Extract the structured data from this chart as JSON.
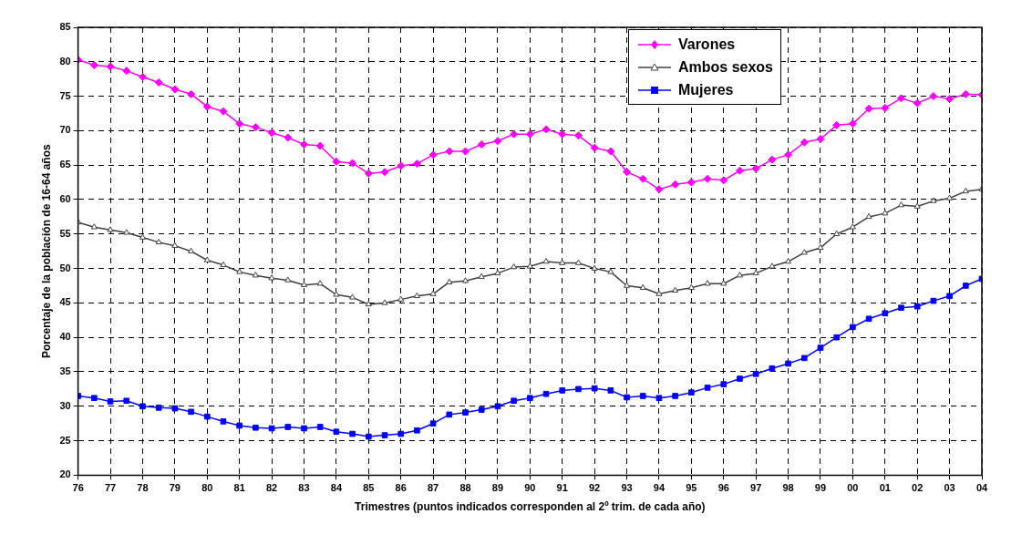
{
  "chart_data": {
    "type": "line",
    "xlabel": "Trimestres (puntos indicados corresponden al 2º trim. de cada año)",
    "ylabel": "Porcentaje de la población de 16-64 años",
    "x": [
      1976,
      1976.5,
      1977,
      1977.5,
      1978,
      1978.5,
      1979,
      1979.5,
      1980,
      1980.5,
      1981,
      1981.5,
      1982,
      1982.5,
      1983,
      1983.5,
      1984,
      1984.5,
      1985,
      1985.5,
      1986,
      1986.5,
      1987,
      1987.5,
      1988,
      1988.5,
      1989,
      1989.5,
      1990,
      1990.5,
      1991,
      1991.5,
      1992,
      1992.5,
      1993,
      1993.5,
      1994,
      1994.5,
      1995,
      1995.5,
      1996,
      1996.5,
      1997,
      1997.5,
      1998,
      1998.5,
      1999,
      1999.5,
      2000,
      2000.5,
      2001,
      2001.5,
      2002,
      2002.5,
      2003,
      2003.5,
      2004
    ],
    "series": [
      {
        "name": "Varones",
        "color": "#ff00ff",
        "marker": "diamond",
        "values": [
          80.3,
          79.5,
          79.3,
          78.7,
          77.8,
          77,
          76,
          75.3,
          73.5,
          72.8,
          71,
          70.5,
          69.7,
          69,
          68,
          67.8,
          65.5,
          65.3,
          63.8,
          64,
          64.9,
          65.2,
          66.5,
          67,
          67,
          68,
          68.5,
          69.5,
          69.5,
          70.2,
          69.5,
          69.3,
          67.5,
          67,
          64,
          63,
          61.5,
          62.2,
          62.5,
          63,
          62.8,
          64.2,
          64.5,
          65.8,
          66.5,
          68.3,
          68.8,
          70.8,
          71,
          73.2,
          73.3,
          74.7,
          74,
          75,
          74.6,
          75.3,
          75.2
        ]
      },
      {
        "name": "Ambos sexos",
        "color": "#404040",
        "marker": "triangle",
        "values": [
          56.7,
          56,
          55.6,
          55.2,
          54.5,
          53.8,
          53.3,
          52.5,
          51.2,
          50.5,
          49.5,
          49,
          48.6,
          48.3,
          47.6,
          47.8,
          46.2,
          45.8,
          44.8,
          45,
          45.5,
          46,
          46.3,
          48,
          48.2,
          48.8,
          49.3,
          50.2,
          50.3,
          51,
          50.8,
          50.8,
          50,
          49.5,
          47.5,
          47.2,
          46.3,
          46.8,
          47.2,
          47.8,
          47.8,
          49,
          49.3,
          50.3,
          51,
          52.3,
          53,
          55,
          56,
          57.5,
          58,
          59.2,
          59,
          59.8,
          60.2,
          61.2,
          61.5
        ]
      },
      {
        "name": "Mujeres",
        "color": "#0000ff",
        "marker": "square",
        "values": [
          31.5,
          31.2,
          30.7,
          30.8,
          30,
          29.8,
          29.7,
          29.2,
          28.5,
          27.8,
          27.2,
          26.9,
          26.8,
          27,
          26.8,
          27,
          26.3,
          26,
          25.6,
          25.8,
          26,
          26.5,
          27.5,
          28.8,
          29.1,
          29.5,
          30,
          30.8,
          31.2,
          31.8,
          32.3,
          32.5,
          32.6,
          32.3,
          31.3,
          31.5,
          31.2,
          31.5,
          32,
          32.7,
          33.2,
          34,
          34.7,
          35.5,
          36.2,
          37,
          38.5,
          40,
          41.5,
          42.7,
          43.5,
          44.3,
          44.5,
          45.3,
          46,
          47.5,
          48.5
        ]
      }
    ],
    "xlim": [
      1976,
      2004
    ],
    "xticks": [
      {
        "value": 1976,
        "label": "76"
      },
      {
        "value": 1977,
        "label": "77"
      },
      {
        "value": 1978,
        "label": "78"
      },
      {
        "value": 1979,
        "label": "79"
      },
      {
        "value": 1980,
        "label": "80"
      },
      {
        "value": 1981,
        "label": "81"
      },
      {
        "value": 1982,
        "label": "82"
      },
      {
        "value": 1983,
        "label": "83"
      },
      {
        "value": 1984,
        "label": "84"
      },
      {
        "value": 1985,
        "label": "85"
      },
      {
        "value": 1986,
        "label": "86"
      },
      {
        "value": 1987,
        "label": "87"
      },
      {
        "value": 1988,
        "label": "88"
      },
      {
        "value": 1989,
        "label": "89"
      },
      {
        "value": 1990,
        "label": "90"
      },
      {
        "value": 1991,
        "label": "91"
      },
      {
        "value": 1992,
        "label": "92"
      },
      {
        "value": 1993,
        "label": "93"
      },
      {
        "value": 1994,
        "label": "94"
      },
      {
        "value": 1995,
        "label": "95"
      },
      {
        "value": 1996,
        "label": "96"
      },
      {
        "value": 1997,
        "label": "97"
      },
      {
        "value": 1998,
        "label": "98"
      },
      {
        "value": 1999,
        "label": "99"
      },
      {
        "value": 2000,
        "label": "00"
      },
      {
        "value": 2001,
        "label": "01"
      },
      {
        "value": 2002,
        "label": "02"
      },
      {
        "value": 2003,
        "label": "03"
      },
      {
        "value": 2004,
        "label": "04"
      }
    ],
    "ylim": [
      20,
      85
    ],
    "yticks": [
      20,
      25,
      30,
      35,
      40,
      45,
      50,
      55,
      60,
      65,
      70,
      75,
      80,
      85
    ],
    "grid": true,
    "legend": "top right",
    "line_style": "solid"
  }
}
